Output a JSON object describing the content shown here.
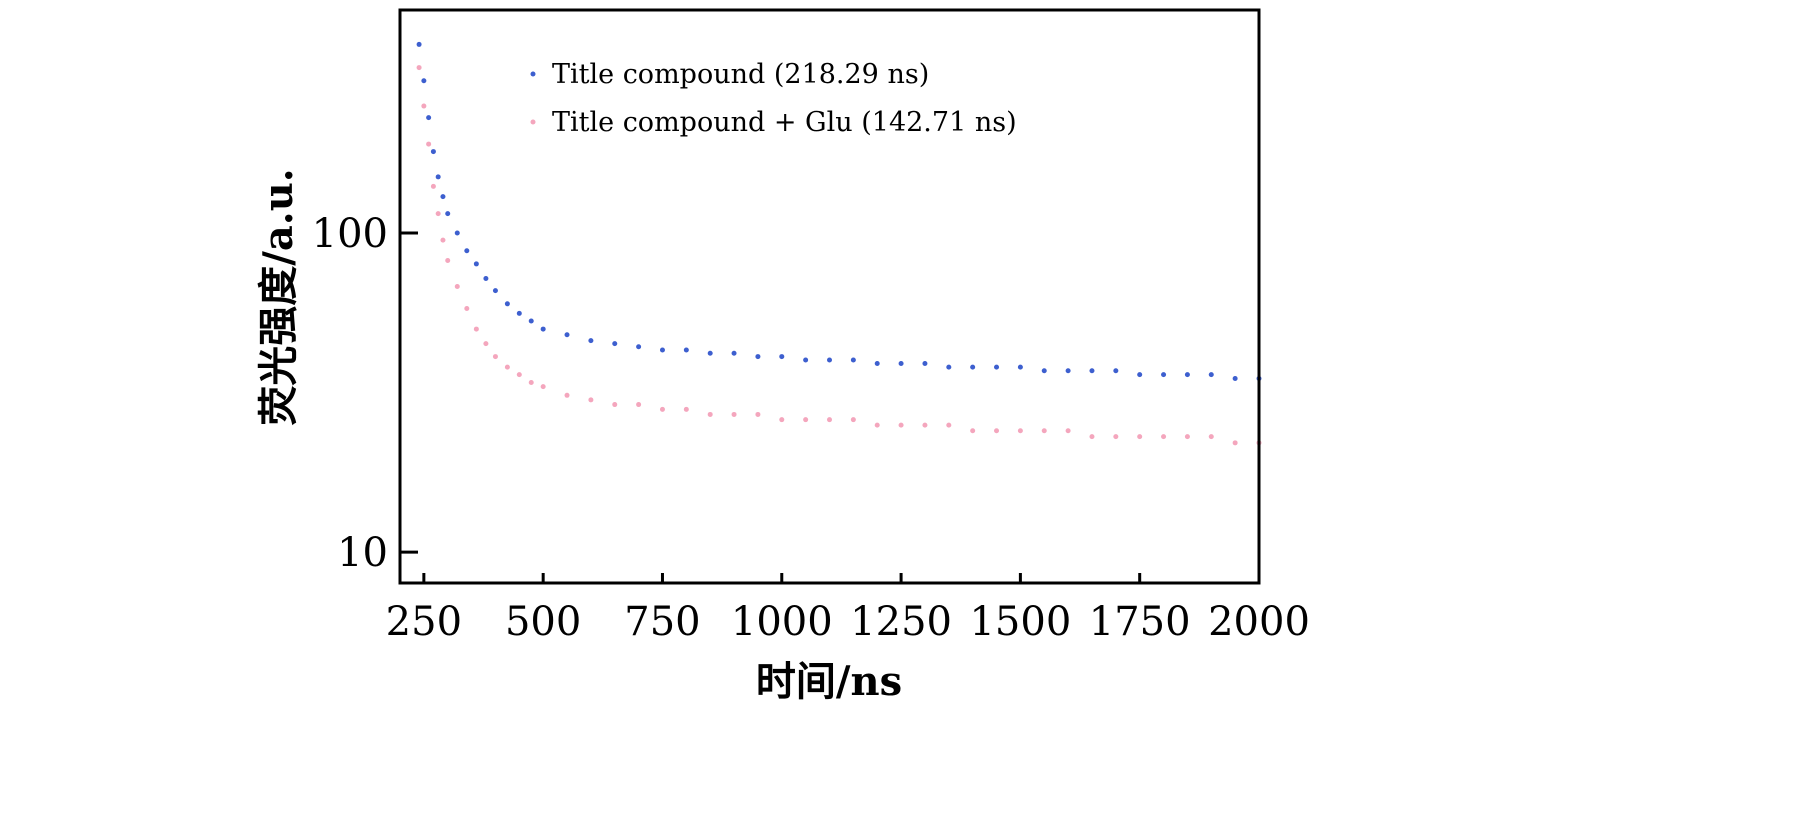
{
  "chart_data": {
    "type": "scatter",
    "title": "",
    "xlabel": "时间/ns",
    "ylabel": "荧光强度/a.u.",
    "xlim": [
      200,
      2000
    ],
    "ylim": [
      8,
      500
    ],
    "yscale": "log",
    "grid": false,
    "legend_position": "top-center",
    "xticks": [
      250,
      500,
      750,
      1000,
      1250,
      1500,
      1750,
      2000
    ],
    "xtick_labels": [
      "250",
      "500",
      "750",
      "1000",
      "1250",
      "1500",
      "1750",
      "2000"
    ],
    "yticks": [
      10,
      100
    ],
    "ytick_labels": [
      "10",
      "100"
    ],
    "x": [
      240,
      250,
      260,
      270,
      280,
      290,
      300,
      320,
      340,
      360,
      380,
      400,
      425,
      450,
      475,
      500,
      550,
      600,
      650,
      700,
      750,
      800,
      850,
      900,
      950,
      1000,
      1050,
      1100,
      1150,
      1200,
      1250,
      1300,
      1350,
      1400,
      1450,
      1500,
      1550,
      1600,
      1650,
      1700,
      1750,
      1800,
      1850,
      1900,
      1950,
      2000
    ],
    "series": [
      {
        "name": "Title compound (218.29 ns)",
        "color": "#3d5fcf",
        "values": [
          390,
          300,
          230,
          180,
          150,
          130,
          115,
          100,
          88,
          80,
          72,
          66,
          60,
          56,
          53,
          50,
          48,
          46,
          45,
          44,
          43,
          43,
          42,
          42,
          41,
          41,
          40,
          40,
          40,
          39,
          39,
          39,
          38,
          38,
          38,
          38,
          37,
          37,
          37,
          37,
          36,
          36,
          36,
          36,
          35,
          35
        ]
      },
      {
        "name": "Title compound + Glu (142.71 ns)",
        "color": "#f4a6bd",
        "values": [
          330,
          250,
          190,
          140,
          115,
          95,
          82,
          68,
          58,
          50,
          45,
          41,
          38,
          36,
          34,
          33,
          31,
          30,
          29,
          29,
          28,
          28,
          27,
          27,
          27,
          26,
          26,
          26,
          26,
          25,
          25,
          25,
          25,
          24,
          24,
          24,
          24,
          24,
          23,
          23,
          23,
          23,
          23,
          23,
          22,
          22
        ]
      }
    ]
  }
}
